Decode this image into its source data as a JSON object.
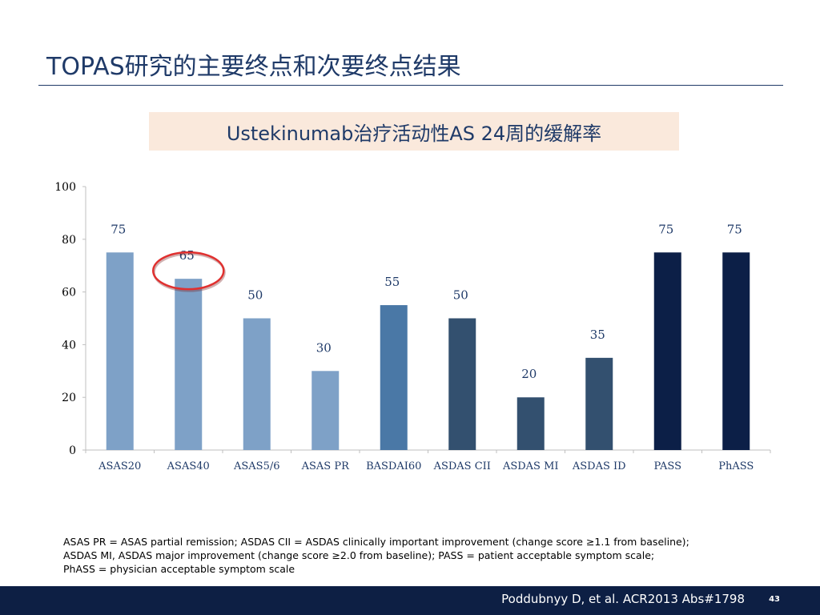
{
  "slide": {
    "title": "TOPAS研究的主要终点和次要终点结果",
    "subtitle": "Ustekinumab治疗活动性AS 24周的缓解率",
    "footnotes": [
      "ASAS PR = ASAS partial remission; ASDAS CII = ASDAS clinically important improvement (change score ≥1.1 from baseline);",
      "ASDAS MI, ASDAS major improvement (change score ≥2.0 from baseline); PASS = patient acceptable symptom scale;",
      "PhASS = physician acceptable symptom scale"
    ],
    "citation": "Poddubnyy D, et al. ACR2013 Abs#1798",
    "page_number": "43"
  },
  "chart_data": {
    "type": "bar",
    "title": "",
    "xlabel": "",
    "ylabel": "",
    "ylim": [
      0,
      100
    ],
    "yticks": [
      0,
      20,
      40,
      60,
      80,
      100
    ],
    "grid": false,
    "categories": [
      "ASAS20",
      "ASAS40",
      "ASAS5/6",
      "ASAS PR",
      "BASDAI60",
      "ASDAS CII",
      "ASDAS MI",
      "ASDAS ID",
      "PASS",
      "PhASS"
    ],
    "values": [
      75,
      65,
      50,
      30,
      55,
      50,
      20,
      35,
      75,
      75
    ],
    "bar_colors": [
      "#7ea1c7",
      "#7ea1c7",
      "#7ea1c7",
      "#7ea1c7",
      "#4a78a6",
      "#33506f",
      "#33506f",
      "#33506f",
      "#0c1f47",
      "#0c1f47"
    ],
    "label_color": "#1f3a68",
    "highlight": {
      "category": "ASAS40",
      "shape": "ellipse",
      "color": "#e0302f"
    }
  }
}
